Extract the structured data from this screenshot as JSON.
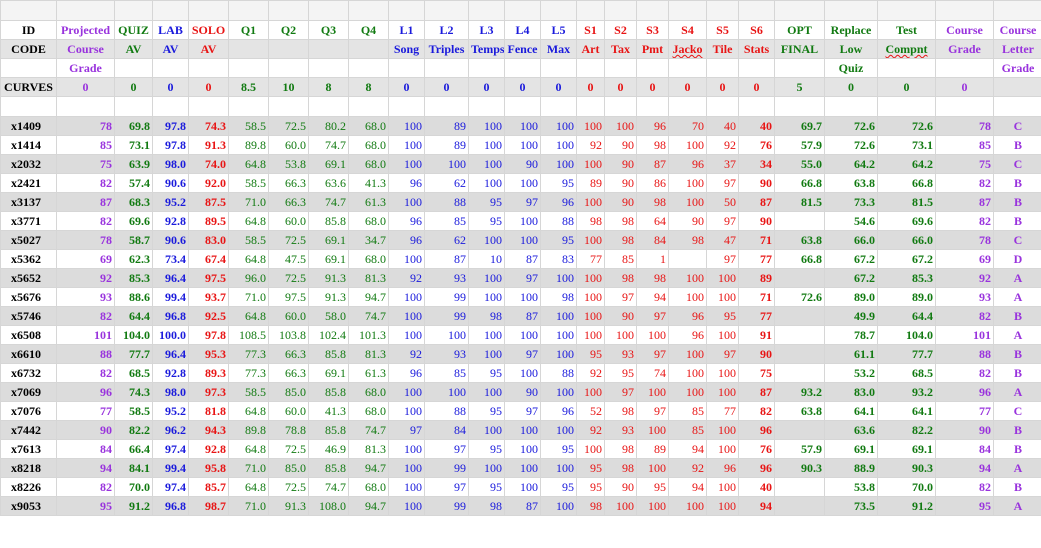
{
  "colors": {
    "purple": "#9933dd",
    "green": "#117a11",
    "blue": "#1a1adc",
    "red": "#e81414",
    "black": "#000000",
    "row_shade": "#dcdcdc",
    "header_shade": "#e4e4e4"
  },
  "header_row1": [
    "ID",
    "Projected",
    "QUIZ",
    "LAB",
    "SOLO",
    "Q1",
    "Q2",
    "Q3",
    "Q4",
    "L1",
    "L2",
    "L3",
    "L4",
    "L5",
    "S1",
    "S2",
    "S3",
    "S4",
    "S5",
    "S6",
    "OPT",
    "Replace",
    "Test",
    "Course",
    "Course"
  ],
  "header_row2": [
    "CODE",
    "Course",
    "AV",
    "AV",
    "AV",
    "",
    "",
    "",
    "",
    "Song",
    "Triples",
    "Temps",
    "Fence",
    "Max",
    "Art",
    "Tax",
    "Pmt",
    "Jacko",
    "Tile",
    "Stats",
    "FINAL",
    "Low",
    "Compnt",
    "Grade",
    "Letter"
  ],
  "header_row3": [
    "",
    "Grade",
    "",
    "",
    "",
    "",
    "",
    "",
    "",
    "",
    "",
    "",
    "",
    "",
    "",
    "",
    "",
    "",
    "",
    "",
    "",
    "Quiz",
    "",
    "",
    "Grade"
  ],
  "curves": [
    "CURVES",
    "0",
    "0",
    "0",
    "0",
    "8.5",
    "10",
    "8",
    "8",
    "0",
    "0",
    "0",
    "0",
    "0",
    "0",
    "0",
    "0",
    "0",
    "0",
    "0",
    "5",
    "0",
    "0",
    "0",
    ""
  ],
  "rows": [
    [
      "x1409",
      "78",
      "69.8",
      "97.8",
      "74.3",
      "58.5",
      "72.5",
      "80.2",
      "68.0",
      "100",
      "89",
      "100",
      "100",
      "100",
      "100",
      "100",
      "96",
      "70",
      "40",
      "40",
      "69.7",
      "72.6",
      "72.6",
      "78",
      "C"
    ],
    [
      "x1414",
      "85",
      "73.1",
      "97.8",
      "91.3",
      "89.8",
      "60.0",
      "74.7",
      "68.0",
      "100",
      "89",
      "100",
      "100",
      "100",
      "92",
      "90",
      "98",
      "100",
      "92",
      "76",
      "57.9",
      "72.6",
      "73.1",
      "85",
      "B"
    ],
    [
      "x2032",
      "75",
      "63.9",
      "98.0",
      "74.0",
      "64.8",
      "53.8",
      "69.1",
      "68.0",
      "100",
      "100",
      "100",
      "90",
      "100",
      "100",
      "90",
      "87",
      "96",
      "37",
      "34",
      "55.0",
      "64.2",
      "64.2",
      "75",
      "C"
    ],
    [
      "x2421",
      "82",
      "57.4",
      "90.6",
      "92.0",
      "58.5",
      "66.3",
      "63.6",
      "41.3",
      "96",
      "62",
      "100",
      "100",
      "95",
      "89",
      "90",
      "86",
      "100",
      "97",
      "90",
      "66.8",
      "63.8",
      "66.8",
      "82",
      "B"
    ],
    [
      "x3137",
      "87",
      "68.3",
      "95.2",
      "87.5",
      "71.0",
      "66.3",
      "74.7",
      "61.3",
      "100",
      "88",
      "95",
      "97",
      "96",
      "100",
      "90",
      "98",
      "100",
      "50",
      "87",
      "81.5",
      "73.3",
      "81.5",
      "87",
      "B"
    ],
    [
      "x3771",
      "82",
      "69.6",
      "92.8",
      "89.5",
      "64.8",
      "60.0",
      "85.8",
      "68.0",
      "96",
      "85",
      "95",
      "100",
      "88",
      "98",
      "98",
      "64",
      "90",
      "97",
      "90",
      "",
      "54.6",
      "69.6",
      "82",
      "B"
    ],
    [
      "x5027",
      "78",
      "58.7",
      "90.6",
      "83.0",
      "58.5",
      "72.5",
      "69.1",
      "34.7",
      "96",
      "62",
      "100",
      "100",
      "95",
      "100",
      "98",
      "84",
      "98",
      "47",
      "71",
      "63.8",
      "66.0",
      "66.0",
      "78",
      "C"
    ],
    [
      "x5362",
      "69",
      "62.3",
      "73.4",
      "67.4",
      "64.8",
      "47.5",
      "69.1",
      "68.0",
      "100",
      "87",
      "10",
      "87",
      "83",
      "77",
      "85",
      "1",
      "",
      "97",
      "77",
      "66.8",
      "67.2",
      "67.2",
      "69",
      "D"
    ],
    [
      "x5652",
      "92",
      "85.3",
      "96.4",
      "97.5",
      "96.0",
      "72.5",
      "91.3",
      "81.3",
      "92",
      "93",
      "100",
      "97",
      "100",
      "100",
      "98",
      "98",
      "100",
      "100",
      "89",
      "",
      "67.2",
      "85.3",
      "92",
      "A"
    ],
    [
      "x5676",
      "93",
      "88.6",
      "99.4",
      "93.7",
      "71.0",
      "97.5",
      "91.3",
      "94.7",
      "100",
      "99",
      "100",
      "100",
      "98",
      "100",
      "97",
      "94",
      "100",
      "100",
      "71",
      "72.6",
      "89.0",
      "89.0",
      "93",
      "A"
    ],
    [
      "x5746",
      "82",
      "64.4",
      "96.8",
      "92.5",
      "64.8",
      "60.0",
      "58.0",
      "74.7",
      "100",
      "99",
      "98",
      "87",
      "100",
      "100",
      "90",
      "97",
      "96",
      "95",
      "77",
      "",
      "49.9",
      "64.4",
      "82",
      "B"
    ],
    [
      "x6508",
      "101",
      "104.0",
      "100.0",
      "97.8",
      "108.5",
      "103.8",
      "102.4",
      "101.3",
      "100",
      "100",
      "100",
      "100",
      "100",
      "100",
      "100",
      "100",
      "96",
      "100",
      "91",
      "",
      "78.7",
      "104.0",
      "101",
      "A"
    ],
    [
      "x6610",
      "88",
      "77.7",
      "96.4",
      "95.3",
      "77.3",
      "66.3",
      "85.8",
      "81.3",
      "92",
      "93",
      "100",
      "97",
      "100",
      "95",
      "93",
      "97",
      "100",
      "97",
      "90",
      "",
      "61.1",
      "77.7",
      "88",
      "B"
    ],
    [
      "x6732",
      "82",
      "68.5",
      "92.8",
      "89.3",
      "77.3",
      "66.3",
      "69.1",
      "61.3",
      "96",
      "85",
      "95",
      "100",
      "88",
      "92",
      "95",
      "74",
      "100",
      "100",
      "75",
      "",
      "53.2",
      "68.5",
      "82",
      "B"
    ],
    [
      "x7069",
      "96",
      "74.3",
      "98.0",
      "97.3",
      "58.5",
      "85.0",
      "85.8",
      "68.0",
      "100",
      "100",
      "100",
      "90",
      "100",
      "100",
      "97",
      "100",
      "100",
      "100",
      "87",
      "93.2",
      "83.0",
      "93.2",
      "96",
      "A"
    ],
    [
      "x7076",
      "77",
      "58.5",
      "95.2",
      "81.8",
      "64.8",
      "60.0",
      "41.3",
      "68.0",
      "100",
      "88",
      "95",
      "97",
      "96",
      "52",
      "98",
      "97",
      "85",
      "77",
      "82",
      "63.8",
      "64.1",
      "64.1",
      "77",
      "C"
    ],
    [
      "x7442",
      "90",
      "82.2",
      "96.2",
      "94.3",
      "89.8",
      "78.8",
      "85.8",
      "74.7",
      "97",
      "84",
      "100",
      "100",
      "100",
      "92",
      "93",
      "100",
      "85",
      "100",
      "96",
      "",
      "63.6",
      "82.2",
      "90",
      "B"
    ],
    [
      "x7613",
      "84",
      "66.4",
      "97.4",
      "92.8",
      "64.8",
      "72.5",
      "46.9",
      "81.3",
      "100",
      "97",
      "95",
      "100",
      "95",
      "100",
      "98",
      "89",
      "94",
      "100",
      "76",
      "57.9",
      "69.1",
      "69.1",
      "84",
      "B"
    ],
    [
      "x8218",
      "94",
      "84.1",
      "99.4",
      "95.8",
      "71.0",
      "85.0",
      "85.8",
      "94.7",
      "100",
      "99",
      "100",
      "100",
      "100",
      "95",
      "98",
      "100",
      "92",
      "96",
      "96",
      "90.3",
      "88.9",
      "90.3",
      "94",
      "A"
    ],
    [
      "x8226",
      "82",
      "70.0",
      "97.4",
      "85.7",
      "64.8",
      "72.5",
      "74.7",
      "68.0",
      "100",
      "97",
      "95",
      "100",
      "95",
      "95",
      "90",
      "95",
      "94",
      "100",
      "40",
      "",
      "53.8",
      "70.0",
      "82",
      "B"
    ],
    [
      "x9053",
      "95",
      "91.2",
      "96.8",
      "98.7",
      "71.0",
      "91.3",
      "108.0",
      "94.7",
      "100",
      "99",
      "98",
      "87",
      "100",
      "98",
      "100",
      "100",
      "100",
      "100",
      "94",
      "",
      "73.5",
      "91.2",
      "95",
      "A"
    ]
  ]
}
